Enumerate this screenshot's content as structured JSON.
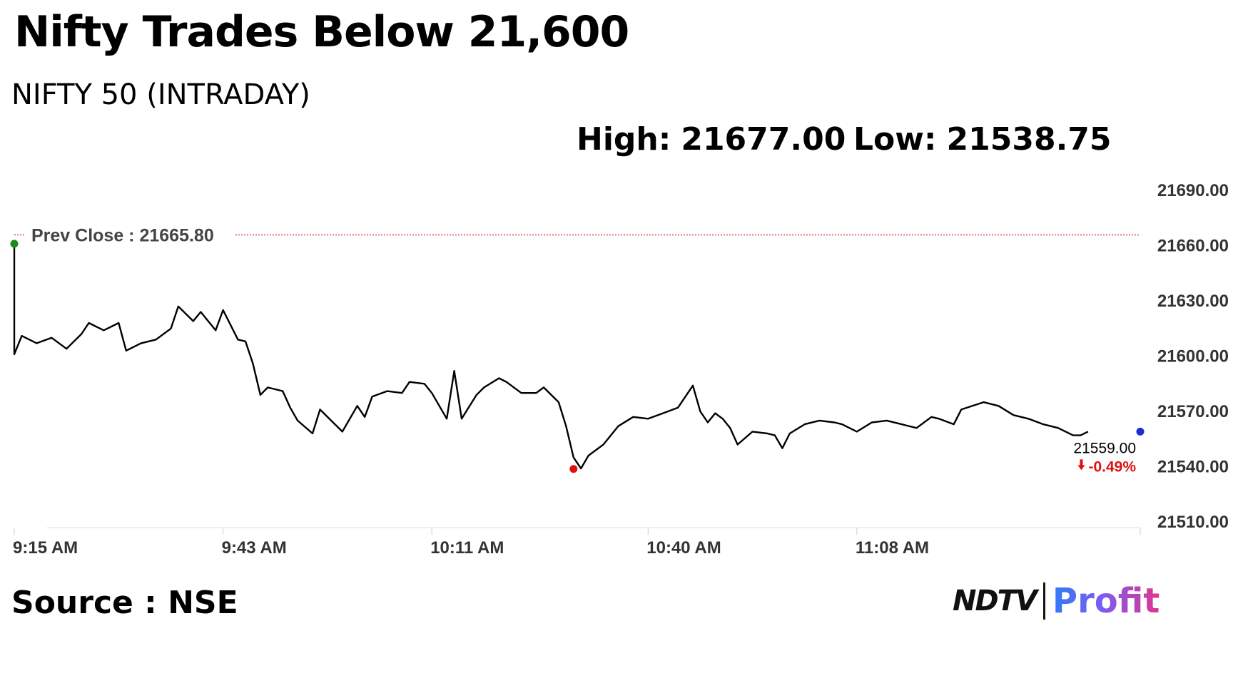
{
  "header": {
    "title": "Nifty Trades Below 21,600",
    "subtitle": "NIFTY 50 (INTRADAY)"
  },
  "stats": {
    "high_label": "High:",
    "high_value": "21677.00",
    "low_label": "Low:",
    "low_value": "21538.75"
  },
  "footer": {
    "source": "Source : NSE",
    "logo_ndtv": "NDTV",
    "logo_profit": "Profit"
  },
  "colors": {
    "line": "#000000",
    "prev_close_line": "#d02020",
    "open_marker": "#1a8a1a",
    "low_marker": "#e01010",
    "last_marker": "#1a2fd0",
    "change_text": "#e01010",
    "axis_text": "#333333"
  },
  "chart_data": {
    "type": "line",
    "title": "",
    "xlabel": "",
    "ylabel": "",
    "ylim": [
      21510,
      21690
    ],
    "y_ticks": [
      "21690.00",
      "21660.00",
      "21630.00",
      "21600.00",
      "21570.00",
      "21540.00",
      "21510.00"
    ],
    "x_range": [
      "9:15 AM",
      "11:46 AM"
    ],
    "x_ticks": [
      "9:15 AM",
      "9:43 AM",
      "10:11 AM",
      "10:40 AM",
      "11:08 AM"
    ],
    "prev_close_label": "Prev Close : 21665.80",
    "prev_close": 21665.8,
    "last_value_label": "21559.00",
    "change_label": "-0.49%",
    "change_arrow": "down-arrow-icon",
    "grid": false,
    "series": [
      {
        "points": [
          [
            "9:15 AM",
            21661
          ],
          [
            "9:15 AM",
            21601
          ],
          [
            "9:16 AM",
            21611
          ],
          [
            "9:18 AM",
            21607
          ],
          [
            "9:20 AM",
            21610
          ],
          [
            "9:22 AM",
            21604
          ],
          [
            "9:24 AM",
            21612
          ],
          [
            "9:25 AM",
            21618
          ],
          [
            "9:27 AM",
            21614
          ],
          [
            "9:29 AM",
            21618
          ],
          [
            "9:30 AM",
            21603
          ],
          [
            "9:32 AM",
            21607
          ],
          [
            "9:34 AM",
            21609
          ],
          [
            "9:36 AM",
            21615
          ],
          [
            "9:37 AM",
            21627
          ],
          [
            "9:39 AM",
            21619
          ],
          [
            "9:40 AM",
            21624
          ],
          [
            "9:42 AM",
            21614
          ],
          [
            "9:43 AM",
            21625
          ],
          [
            "9:45 AM",
            21609
          ],
          [
            "9:46 AM",
            21608
          ],
          [
            "9:47 AM",
            21596
          ],
          [
            "9:48 AM",
            21579
          ],
          [
            "9:49 AM",
            21583
          ],
          [
            "9:51 AM",
            21581
          ],
          [
            "9:52 AM",
            21572
          ],
          [
            "9:53 AM",
            21565
          ],
          [
            "9:55 AM",
            21558
          ],
          [
            "9:56 AM",
            21571
          ],
          [
            "9:58 AM",
            21563
          ],
          [
            "9:59 AM",
            21559
          ],
          [
            "10:01 AM",
            21573
          ],
          [
            "10:02 AM",
            21567
          ],
          [
            "10:03 AM",
            21578
          ],
          [
            "10:05 AM",
            21581
          ],
          [
            "10:07 AM",
            21580
          ],
          [
            "10:08 AM",
            21586
          ],
          [
            "10:10 AM",
            21585
          ],
          [
            "10:11 AM",
            21580
          ],
          [
            "10:13 AM",
            21566
          ],
          [
            "10:14 AM",
            21592
          ],
          [
            "10:15 AM",
            21566
          ],
          [
            "10:17 AM",
            21579
          ],
          [
            "10:18 AM",
            21583
          ],
          [
            "10:20 AM",
            21588
          ],
          [
            "10:21 AM",
            21586
          ],
          [
            "10:23 AM",
            21580
          ],
          [
            "10:25 AM",
            21580
          ],
          [
            "10:26 AM",
            21583
          ],
          [
            "10:28 AM",
            21575
          ],
          [
            "10:29 AM",
            21562
          ],
          [
            "10:30 AM",
            21545
          ],
          [
            "10:31 AM",
            21539
          ],
          [
            "10:32 AM",
            21546
          ],
          [
            "10:34 AM",
            21552
          ],
          [
            "10:36 AM",
            21562
          ],
          [
            "10:38 AM",
            21567
          ],
          [
            "10:40 AM",
            21566
          ],
          [
            "10:42 AM",
            21569
          ],
          [
            "10:44 AM",
            21572
          ],
          [
            "10:46 AM",
            21584
          ],
          [
            "10:47 AM",
            21570
          ],
          [
            "10:48 AM",
            21564
          ],
          [
            "10:49 AM",
            21569
          ],
          [
            "10:50 AM",
            21566
          ],
          [
            "10:51 AM",
            21561
          ],
          [
            "10:52 AM",
            21552
          ],
          [
            "10:54 AM",
            21559
          ],
          [
            "10:56 AM",
            21558
          ],
          [
            "10:57 AM",
            21557
          ],
          [
            "10:58 AM",
            21550
          ],
          [
            "10:59 AM",
            21558
          ],
          [
            "11:01 AM",
            21563
          ],
          [
            "11:03 AM",
            21565
          ],
          [
            "11:05 AM",
            21564
          ],
          [
            "11:06 AM",
            21563
          ],
          [
            "11:08 AM",
            21559
          ],
          [
            "11:10 AM",
            21564
          ],
          [
            "11:12 AM",
            21565
          ],
          [
            "11:14 AM",
            21563
          ],
          [
            "11:16 AM",
            21561
          ],
          [
            "11:18 AM",
            21567
          ],
          [
            "11:19 AM",
            21566
          ],
          [
            "11:21 AM",
            21563
          ],
          [
            "11:22 AM",
            21571
          ],
          [
            "11:25 AM",
            21575
          ],
          [
            "11:27 AM",
            21573
          ],
          [
            "11:29 AM",
            21568
          ],
          [
            "11:31 AM",
            21566
          ],
          [
            "11:33 AM",
            21563
          ],
          [
            "11:35 AM",
            21561
          ],
          [
            "11:37 AM",
            21557
          ],
          [
            "11:38 AM",
            21557
          ],
          [
            "11:39 AM",
            21559
          ]
        ]
      }
    ],
    "markers": [
      {
        "name": "open",
        "time": "9:15 AM",
        "value": 21661
      },
      {
        "name": "low",
        "time": "10:30 AM",
        "value": 21538.75
      },
      {
        "name": "last",
        "time": "11:46 AM",
        "value": 21559
      }
    ]
  }
}
